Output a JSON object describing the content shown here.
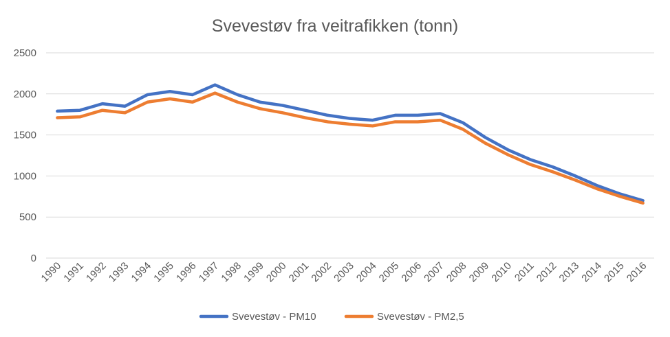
{
  "chart_data": {
    "type": "line",
    "title": "Svevestøv fra veitrafikken (tonn)",
    "xlabel": "",
    "ylabel": "",
    "categories": [
      "1990",
      "1991",
      "1992",
      "1993",
      "1994",
      "1995",
      "1996",
      "1997",
      "1998",
      "1999",
      "2000",
      "2001",
      "2002",
      "2003",
      "2004",
      "2005",
      "2006",
      "2007",
      "2008",
      "2009",
      "2010",
      "2011",
      "2012",
      "2013",
      "2014",
      "2015",
      "2016"
    ],
    "ylim": [
      0,
      2500
    ],
    "yticks": [
      "0",
      "500",
      "1000",
      "1500",
      "2000",
      "2500"
    ],
    "grid": true,
    "legend_position": "bottom",
    "series": [
      {
        "name": "Svevestøv - PM10",
        "color": "#4472c4",
        "values": [
          1790,
          1800,
          1880,
          1850,
          1990,
          2030,
          1990,
          2110,
          1990,
          1900,
          1860,
          1800,
          1740,
          1700,
          1680,
          1740,
          1740,
          1760,
          1650,
          1470,
          1320,
          1200,
          1110,
          1000,
          880,
          780,
          700
        ]
      },
      {
        "name": "Svevestøv - PM2,5",
        "color": "#ed7d31",
        "values": [
          1710,
          1720,
          1800,
          1770,
          1900,
          1940,
          1900,
          2010,
          1900,
          1820,
          1770,
          1710,
          1660,
          1630,
          1610,
          1660,
          1660,
          1680,
          1570,
          1400,
          1260,
          1140,
          1050,
          950,
          840,
          750,
          670
        ]
      }
    ]
  }
}
